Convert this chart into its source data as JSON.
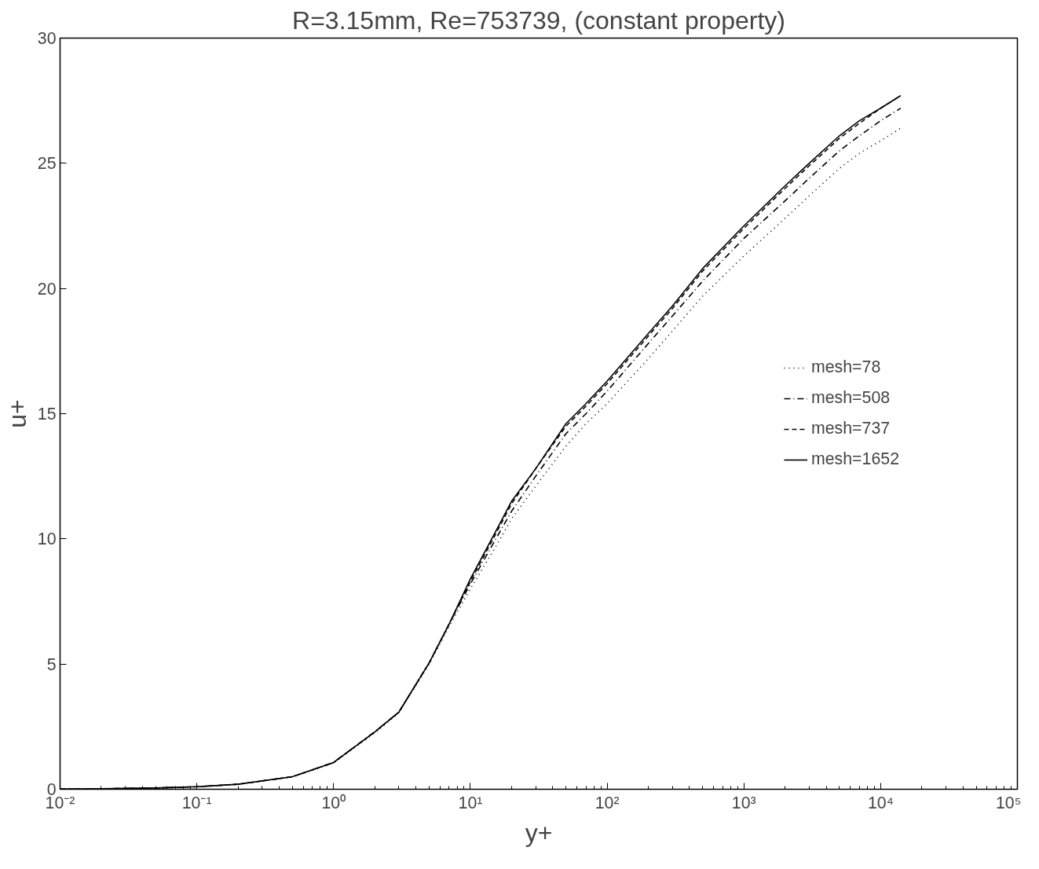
{
  "chart_data": {
    "type": "line",
    "title": "R=3.15mm, Re=753739, (constant property)",
    "xlabel": "y+",
    "ylabel": "u+",
    "log": "x",
    "x": [
      0.01,
      0.02,
      0.05,
      0.1,
      0.2,
      0.5,
      1,
      2,
      3,
      5,
      7,
      10,
      15,
      20,
      30,
      50,
      70,
      100,
      200,
      300,
      500,
      1000,
      2000,
      3000,
      5000,
      7000,
      10000,
      14000
    ],
    "series": [
      {
        "name": "mesh=78",
        "color": "#000000",
        "line_style": "dotted",
        "values": [
          0.01,
          0.02,
          0.05,
          0.1,
          0.2,
          0.5,
          1.05,
          2.25,
          3.05,
          5.0,
          6.5,
          8.0,
          9.6,
          10.8,
          12.1,
          13.7,
          14.6,
          15.4,
          17.2,
          18.3,
          19.7,
          21.3,
          22.8,
          23.7,
          24.8,
          25.4,
          25.9,
          26.4
        ]
      },
      {
        "name": "mesh=508",
        "color": "#000000",
        "line_style": "dashdot",
        "values": [
          0.01,
          0.02,
          0.05,
          0.1,
          0.2,
          0.5,
          1.07,
          2.3,
          3.08,
          5.05,
          6.6,
          8.2,
          9.9,
          11.1,
          12.5,
          14.2,
          15.0,
          15.9,
          17.8,
          18.9,
          20.3,
          22.0,
          23.5,
          24.4,
          25.5,
          26.1,
          26.7,
          27.2
        ]
      },
      {
        "name": "mesh=737",
        "color": "#000000",
        "line_style": "dashed",
        "values": [
          0.01,
          0.02,
          0.05,
          0.1,
          0.2,
          0.5,
          1.07,
          2.29,
          3.08,
          5.05,
          6.6,
          8.3,
          10.1,
          11.4,
          12.8,
          14.5,
          15.3,
          16.2,
          18.1,
          19.2,
          20.7,
          22.4,
          24.0,
          24.9,
          26.0,
          26.6,
          27.2,
          27.7
        ]
      },
      {
        "name": "mesh=1652",
        "color": "#000000",
        "line_style": "solid",
        "values": [
          0.01,
          0.02,
          0.05,
          0.1,
          0.2,
          0.5,
          1.07,
          2.29,
          3.08,
          5.05,
          6.6,
          8.4,
          10.2,
          11.5,
          12.8,
          14.6,
          15.4,
          16.3,
          18.2,
          19.3,
          20.8,
          22.5,
          24.1,
          25.0,
          26.1,
          26.7,
          27.2,
          27.7
        ]
      }
    ],
    "xlim": [
      0.01,
      100000
    ],
    "xticks": [
      {
        "value": 0.01,
        "label": "10⁻²"
      },
      {
        "value": 0.1,
        "label": "10⁻¹"
      },
      {
        "value": 1,
        "label": "10⁰"
      },
      {
        "value": 10,
        "label": "10¹"
      },
      {
        "value": 100,
        "label": "10²"
      },
      {
        "value": 1000,
        "label": "10³"
      },
      {
        "value": 10000,
        "label": "10⁴"
      },
      {
        "value": 100000,
        "label": "10⁵"
      }
    ],
    "ylim": [
      0,
      30
    ],
    "yticks": [
      0,
      5,
      10,
      15,
      20,
      25,
      30
    ],
    "legend": "right",
    "grid": false
  }
}
